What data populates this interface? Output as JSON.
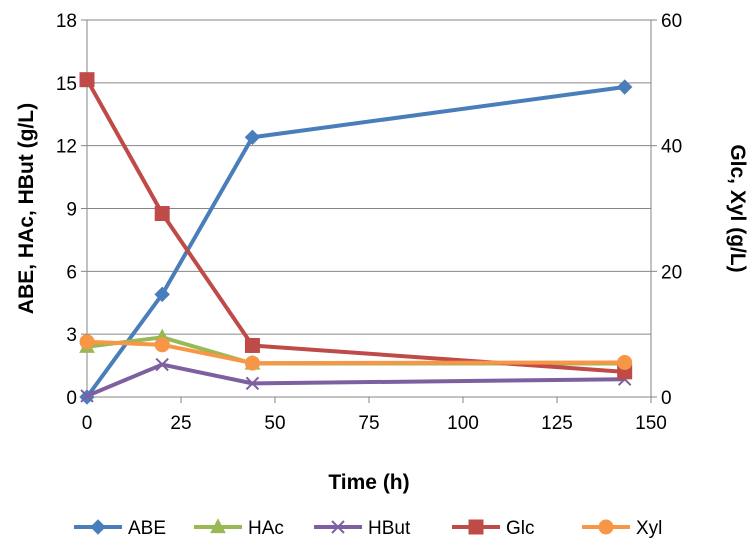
{
  "chart_data": {
    "type": "line",
    "title": "",
    "xlabel": "Time (h)",
    "ylabel_left": "ABE, HAc, HBut (g/L)",
    "ylabel_right": "Glc, Xyl (g/L)",
    "xlim": [
      0,
      150
    ],
    "ylim_left": [
      0,
      18
    ],
    "ylim_right": [
      0,
      60
    ],
    "x_ticks": [
      0,
      25,
      50,
      75,
      100,
      125,
      150
    ],
    "y_left_ticks": [
      0,
      3,
      6,
      9,
      12,
      15,
      18
    ],
    "y_right_ticks": [
      0,
      20,
      40,
      60
    ],
    "grid": "horizontal",
    "legend_position": "bottom",
    "series": [
      {
        "name": "ABE",
        "axis": "left",
        "color": "#4A7EBB",
        "marker": "diamond",
        "x": [
          0,
          20,
          44,
          143
        ],
        "y": [
          0,
          4.9,
          12.4,
          14.8
        ]
      },
      {
        "name": "HAc",
        "axis": "left",
        "color": "#98B954",
        "marker": "triangle",
        "x": [
          0,
          20,
          44,
          143
        ],
        "y": [
          2.4,
          2.85,
          1.6,
          1.6
        ]
      },
      {
        "name": "HBut",
        "axis": "left",
        "color": "#7D60A0",
        "marker": "x",
        "x": [
          0,
          20,
          44,
          143
        ],
        "y": [
          0.05,
          1.55,
          0.65,
          0.85
        ]
      },
      {
        "name": "Glc",
        "axis": "right",
        "color": "#BE4B48",
        "marker": "square",
        "x": [
          0,
          20,
          44,
          143
        ],
        "y": [
          50.5,
          29.2,
          8.2,
          4.0
        ]
      },
      {
        "name": "Xyl",
        "axis": "right",
        "color": "#F79646",
        "marker": "circle",
        "x": [
          0,
          20,
          44,
          143
        ],
        "y": [
          8.8,
          8.3,
          5.4,
          5.5
        ]
      }
    ]
  }
}
